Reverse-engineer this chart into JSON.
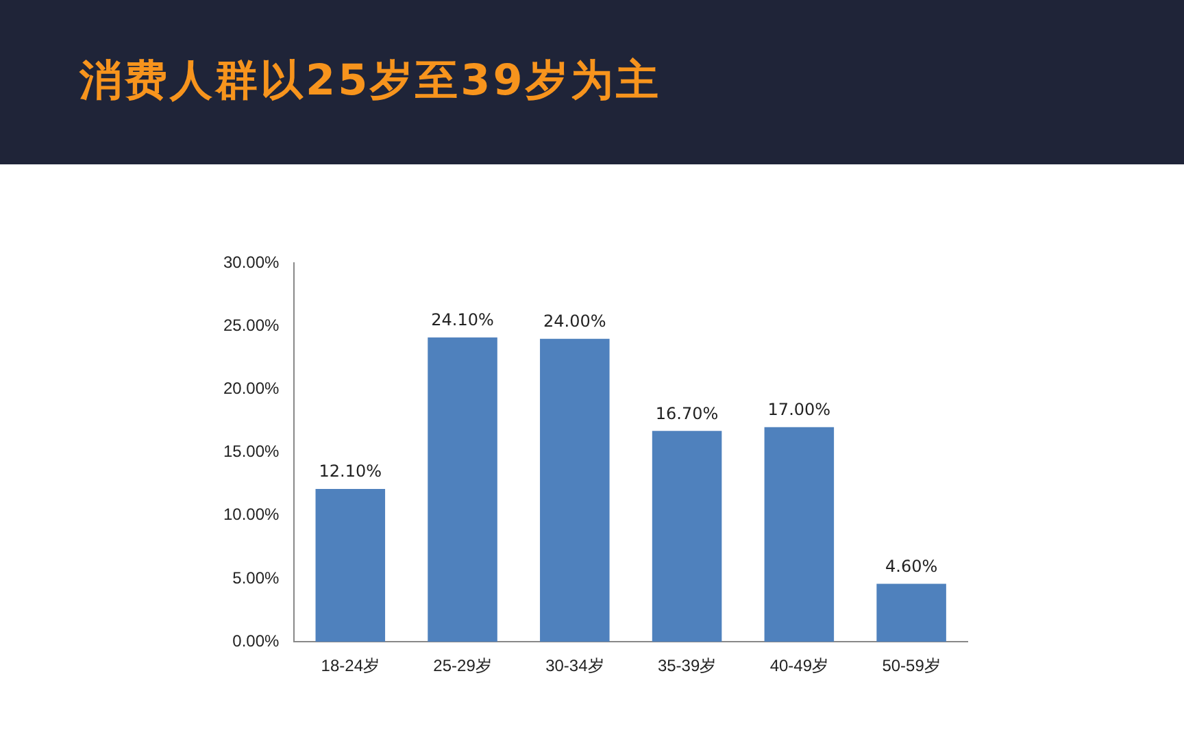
{
  "chart_data": {
    "type": "bar",
    "title": "消费人群以25岁至39岁为主",
    "categories": [
      "18-24岁",
      "25-29岁",
      "30-34岁",
      "35-39岁",
      "40-49岁",
      "50-59岁"
    ],
    "values": [
      12.1,
      24.1,
      24.0,
      16.7,
      17.0,
      4.6
    ],
    "value_labels": [
      "12.10%",
      "24.10%",
      "24.00%",
      "16.70%",
      "17.00%",
      "4.60%"
    ],
    "color": "#4f81bd",
    "ylim": [
      0,
      30
    ],
    "yticks": [
      {
        "value": 0,
        "label": "0.00%"
      },
      {
        "value": 5,
        "label": "5.00%"
      },
      {
        "value": 10,
        "label": "10.00%"
      },
      {
        "value": 15,
        "label": "15.00%"
      },
      {
        "value": 20,
        "label": "20.00%"
      },
      {
        "value": 25,
        "label": "25.00%"
      },
      {
        "value": 30,
        "label": "30.00%"
      }
    ]
  }
}
